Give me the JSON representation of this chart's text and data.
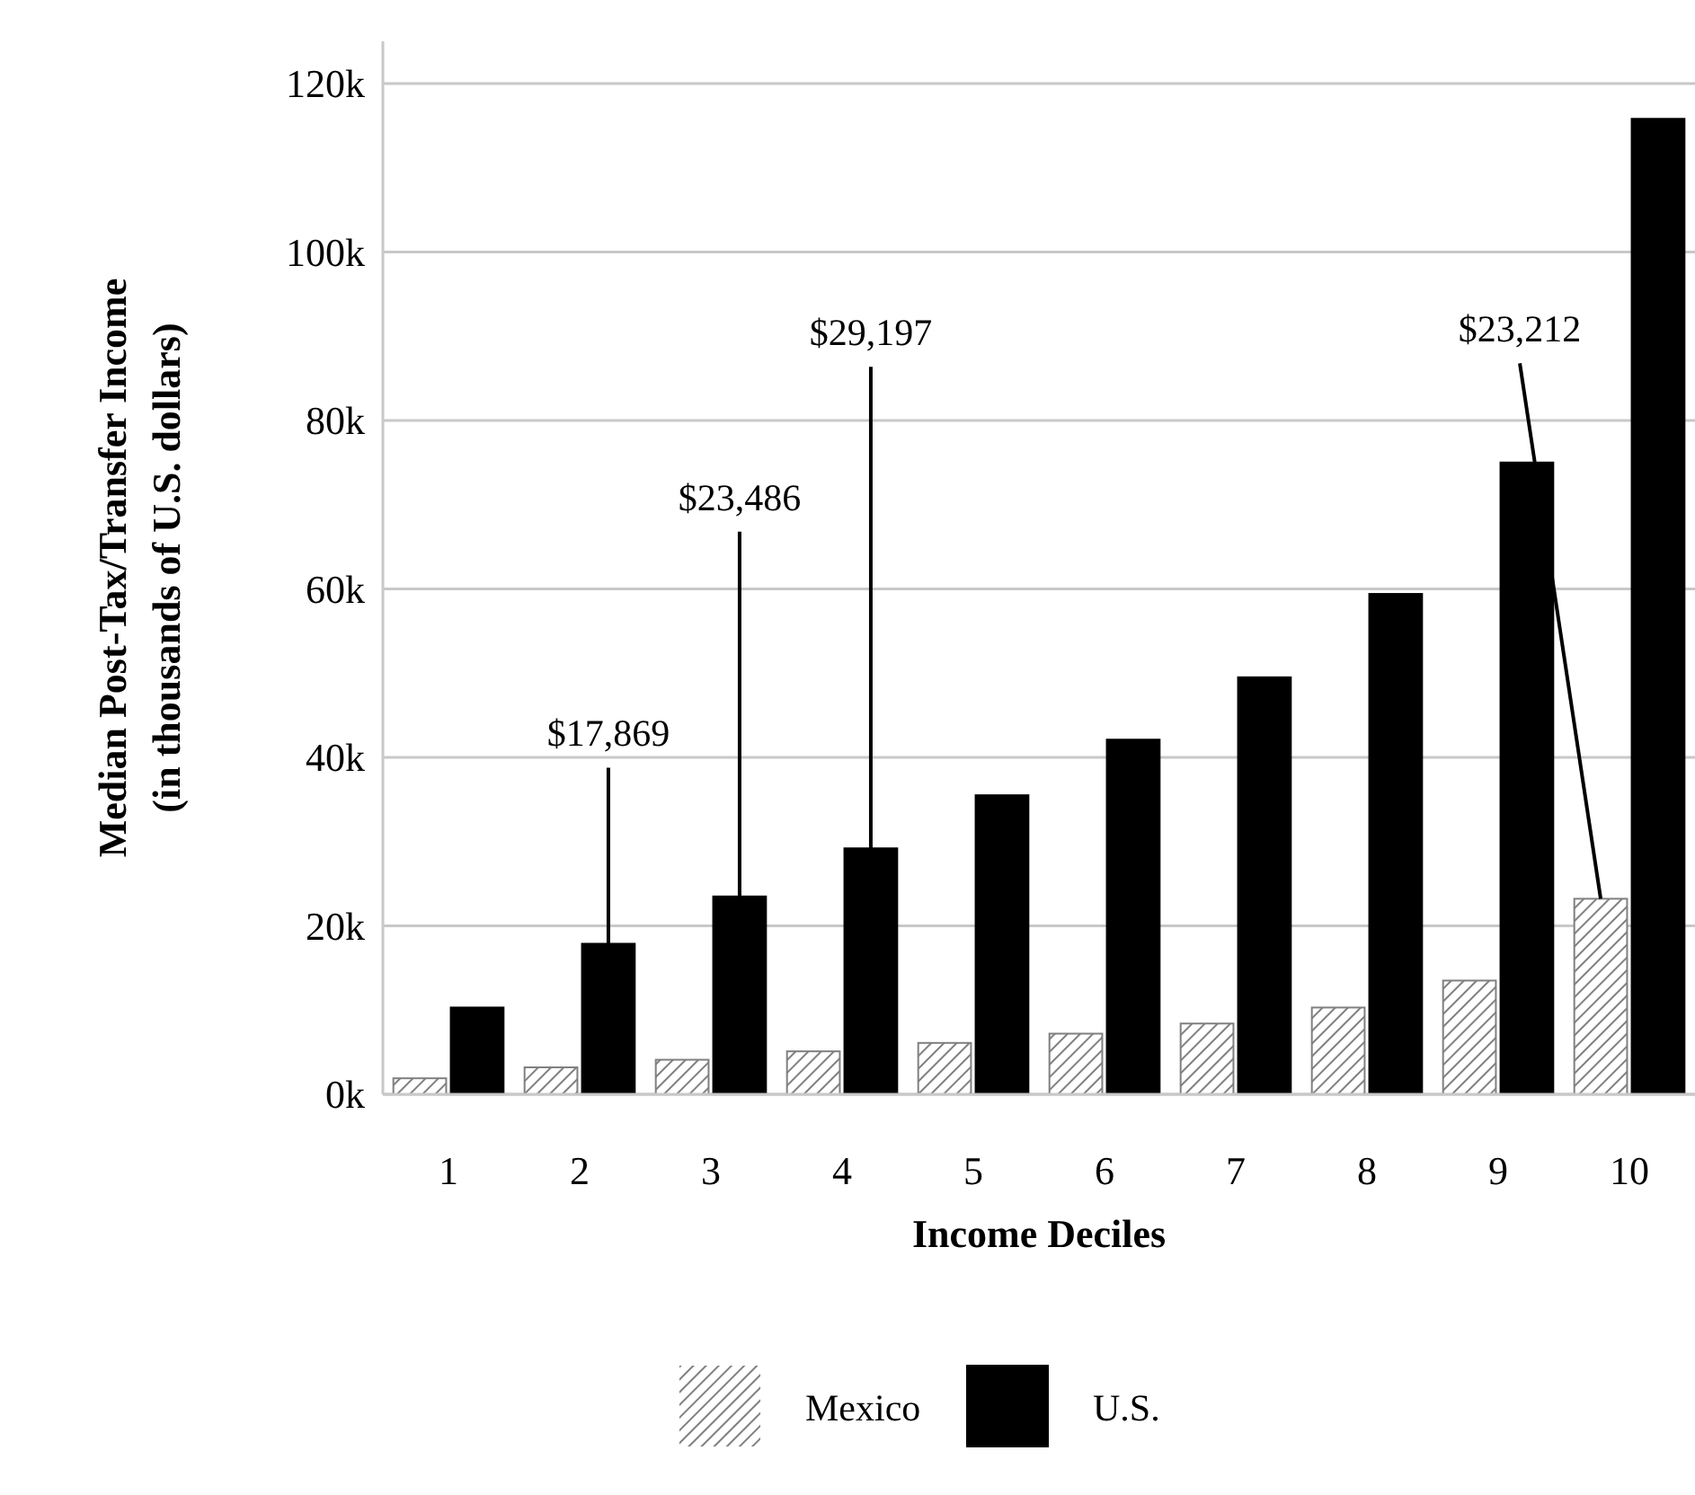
{
  "chart_data": {
    "type": "bar",
    "xlabel": "Income Deciles",
    "ylabel": "Median Post-Tax/Transfer Income\n(in thousands of U.S. dollars)",
    "categories": [
      "1",
      "2",
      "3",
      "4",
      "5",
      "6",
      "7",
      "8",
      "9",
      "10"
    ],
    "series": [
      {
        "name": "Mexico",
        "color": "#808080",
        "values": [
          1900,
          3200,
          4100,
          5100,
          6100,
          7200,
          8400,
          10300,
          13500,
          23212
        ],
        "value_labels": [
          null,
          null,
          null,
          null,
          null,
          null,
          null,
          null,
          null,
          "$23,212"
        ]
      },
      {
        "name": "U.S.",
        "color": "#000000",
        "values": [
          10300,
          17869,
          23486,
          29197,
          35500,
          42100,
          49500,
          59400,
          75000,
          115800
        ],
        "value_labels": [
          null,
          "$17,869",
          "$23,486",
          "$29,197",
          null,
          null,
          null,
          null,
          null,
          null
        ]
      }
    ],
    "ylim": [
      0,
      125000
    ],
    "yticks": [
      {
        "value": 0,
        "label": "0k"
      },
      {
        "value": 20000,
        "label": "20k"
      },
      {
        "value": 40000,
        "label": "40k"
      },
      {
        "value": 60000,
        "label": "60k"
      },
      {
        "value": 80000,
        "label": "80k"
      },
      {
        "value": 100000,
        "label": "100k"
      },
      {
        "value": 120000,
        "label": "120k"
      }
    ],
    "grid": "y",
    "legend": "bottom"
  }
}
